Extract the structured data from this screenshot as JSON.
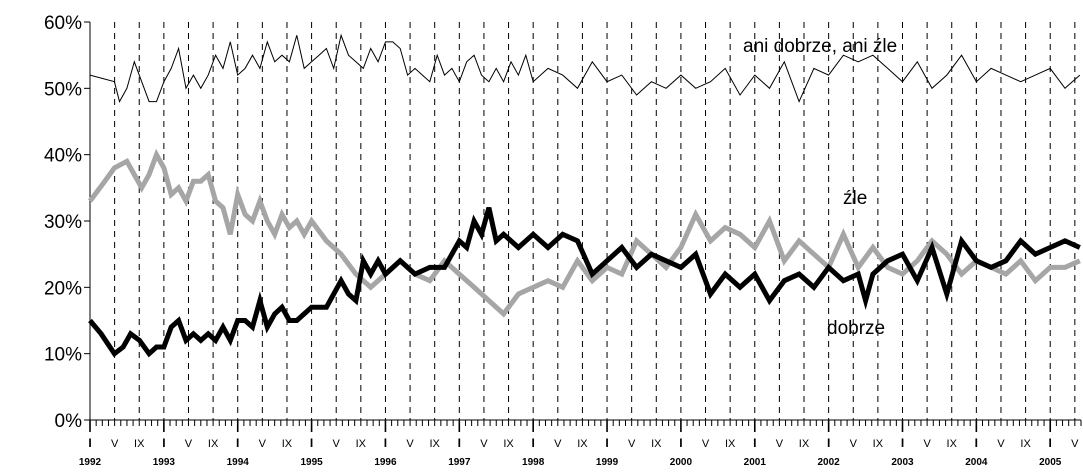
{
  "chart_data": {
    "type": "line",
    "ylim": [
      0,
      60
    ],
    "y_ticks": [
      "0%",
      "10%",
      "20%",
      "30%",
      "40%",
      "50%",
      "60%"
    ],
    "x_range": [
      1992.0,
      2005.4167
    ],
    "month_labels": [
      "I",
      "V",
      "IX"
    ],
    "years": [
      "1992",
      "1993",
      "1994",
      "1995",
      "1996",
      "1997",
      "1998",
      "1999",
      "2000",
      "2001",
      "2002",
      "2003",
      "2004",
      "2005"
    ],
    "grid": "dashed-vertical-at-I-V-IX",
    "series": [
      {
        "name": "ani dobrze, ani źle",
        "color": "#000000",
        "x": [
          1992.0,
          1992.33,
          1992.4,
          1992.5,
          1992.6,
          1992.7,
          1992.8,
          1992.9,
          1993.0,
          1993.1,
          1993.2,
          1993.3,
          1993.4,
          1993.5,
          1993.6,
          1993.7,
          1993.8,
          1993.9,
          1994.0,
          1994.1,
          1994.2,
          1994.3,
          1994.4,
          1994.5,
          1994.6,
          1994.7,
          1994.8,
          1994.9,
          1995.0,
          1995.1,
          1995.2,
          1995.3,
          1995.4,
          1995.5,
          1995.6,
          1995.7,
          1995.8,
          1995.9,
          1996.0,
          1996.1,
          1996.2,
          1996.3,
          1996.4,
          1996.5,
          1996.6,
          1996.7,
          1996.8,
          1996.9,
          1997.0,
          1997.1,
          1997.2,
          1997.3,
          1997.4,
          1997.5,
          1997.6,
          1997.7,
          1997.8,
          1997.9,
          1998.0,
          1998.2,
          1998.4,
          1998.6,
          1998.8,
          1999.0,
          1999.2,
          1999.4,
          1999.6,
          1999.8,
          2000.0,
          2000.2,
          2000.4,
          2000.6,
          2000.8,
          2001.0,
          2001.2,
          2001.4,
          2001.6,
          2001.8,
          2002.0,
          2002.2,
          2002.4,
          2002.6,
          2002.8,
          2003.0,
          2003.2,
          2003.4,
          2003.6,
          2003.8,
          2004.0,
          2004.2,
          2004.4,
          2004.6,
          2004.8,
          2005.0,
          2005.2,
          2005.4
        ],
        "y": [
          52,
          51,
          48,
          50,
          54,
          51,
          48,
          48,
          51,
          53,
          56,
          50,
          52,
          50,
          52,
          55,
          53,
          57,
          52,
          53,
          55,
          53,
          57,
          54,
          55,
          54,
          58,
          53,
          54,
          55,
          56,
          53,
          58,
          55,
          54,
          53,
          56,
          54,
          57,
          57,
          56,
          52,
          53,
          52,
          51,
          55,
          52,
          53,
          51,
          54,
          55,
          52,
          51,
          53,
          51,
          54,
          52,
          55,
          51,
          53,
          52,
          50,
          54,
          51,
          52,
          49,
          51,
          50,
          52,
          50,
          51,
          53,
          49,
          52,
          50,
          54,
          48,
          53,
          52,
          55,
          54,
          55,
          53,
          51,
          54,
          50,
          52,
          55,
          51,
          53,
          52,
          51,
          52,
          53,
          50,
          52
        ]
      },
      {
        "name": "źle",
        "color": "#a6a6a6",
        "x": [
          1992.0,
          1992.2,
          1992.33,
          1992.5,
          1992.6,
          1992.7,
          1992.8,
          1992.9,
          1993.0,
          1993.1,
          1993.2,
          1993.3,
          1993.4,
          1993.5,
          1993.6,
          1993.7,
          1993.8,
          1993.9,
          1994.0,
          1994.1,
          1994.2,
          1994.3,
          1994.4,
          1994.5,
          1994.6,
          1994.7,
          1994.8,
          1994.9,
          1995.0,
          1995.2,
          1995.4,
          1995.6,
          1995.8,
          1996.0,
          1996.2,
          1996.4,
          1996.6,
          1996.8,
          1997.0,
          1997.2,
          1997.4,
          1997.6,
          1997.8,
          1998.0,
          1998.2,
          1998.4,
          1998.6,
          1998.8,
          1999.0,
          1999.2,
          1999.4,
          1999.6,
          1999.8,
          2000.0,
          2000.2,
          2000.4,
          2000.6,
          2000.8,
          2001.0,
          2001.2,
          2001.4,
          2001.6,
          2001.8,
          2002.0,
          2002.2,
          2002.4,
          2002.6,
          2002.8,
          2003.0,
          2003.2,
          2003.4,
          2003.6,
          2003.8,
          2004.0,
          2004.2,
          2004.4,
          2004.6,
          2004.8,
          2005.0,
          2005.2,
          2005.4
        ],
        "y": [
          33,
          36,
          38,
          39,
          37,
          35,
          37,
          40,
          38,
          34,
          35,
          33,
          36,
          36,
          37,
          33,
          32,
          28,
          34,
          31,
          30,
          33,
          30,
          28,
          31,
          29,
          30,
          28,
          30,
          27,
          25,
          22,
          20,
          22,
          24,
          22,
          21,
          24,
          22,
          20,
          18,
          16,
          19,
          20,
          21,
          20,
          24,
          21,
          23,
          22,
          27,
          25,
          23,
          26,
          31,
          27,
          29,
          28,
          26,
          30,
          24,
          27,
          25,
          23,
          28,
          23,
          26,
          23,
          22,
          24,
          27,
          25,
          22,
          24,
          23,
          22,
          24,
          21,
          23,
          23,
          24
        ]
      },
      {
        "name": "dobrze",
        "color": "#000000",
        "x": [
          1992.0,
          1992.15,
          1992.33,
          1992.45,
          1992.55,
          1992.67,
          1992.8,
          1992.9,
          1993.0,
          1993.1,
          1993.2,
          1993.3,
          1993.4,
          1993.5,
          1993.6,
          1993.7,
          1993.8,
          1993.9,
          1994.0,
          1994.1,
          1994.2,
          1994.3,
          1994.4,
          1994.5,
          1994.6,
          1994.7,
          1994.8,
          1994.9,
          1995.0,
          1995.2,
          1995.4,
          1995.5,
          1995.6,
          1995.7,
          1995.8,
          1995.9,
          1996.0,
          1996.2,
          1996.4,
          1996.6,
          1996.8,
          1997.0,
          1997.1,
          1997.2,
          1997.3,
          1997.4,
          1997.5,
          1997.6,
          1997.7,
          1997.8,
          1998.0,
          1998.2,
          1998.4,
          1998.6,
          1998.8,
          1999.0,
          1999.2,
          1999.4,
          1999.6,
          1999.8,
          2000.0,
          2000.2,
          2000.4,
          2000.6,
          2000.8,
          2001.0,
          2001.2,
          2001.4,
          2001.6,
          2001.8,
          2002.0,
          2002.2,
          2002.4,
          2002.5,
          2002.6,
          2002.8,
          2003.0,
          2003.2,
          2003.4,
          2003.6,
          2003.8,
          2004.0,
          2004.2,
          2004.4,
          2004.6,
          2004.8,
          2005.0,
          2005.2,
          2005.4
        ],
        "y": [
          15,
          13,
          10,
          11,
          13,
          12,
          10,
          11,
          11,
          14,
          15,
          12,
          13,
          12,
          13,
          12,
          14,
          12,
          15,
          15,
          14,
          18,
          14,
          16,
          17,
          15,
          15,
          16,
          17,
          17,
          21,
          19,
          18,
          24,
          22,
          24,
          22,
          24,
          22,
          23,
          23,
          27,
          26,
          30,
          28,
          32,
          27,
          28,
          27,
          26,
          28,
          26,
          28,
          27,
          22,
          24,
          26,
          23,
          25,
          24,
          23,
          25,
          19,
          22,
          20,
          22,
          18,
          21,
          22,
          20,
          23,
          21,
          22,
          18,
          22,
          24,
          25,
          21,
          26,
          19,
          27,
          24,
          23,
          24,
          27,
          25,
          26,
          27,
          26
        ]
      }
    ],
    "annotations": [
      {
        "text": "ani dobrze, ani źle",
        "series": "ani dobrze, ani źle"
      },
      {
        "text": "źle",
        "series": "źle"
      },
      {
        "text": "dobrze",
        "series": "dobrze"
      }
    ]
  }
}
